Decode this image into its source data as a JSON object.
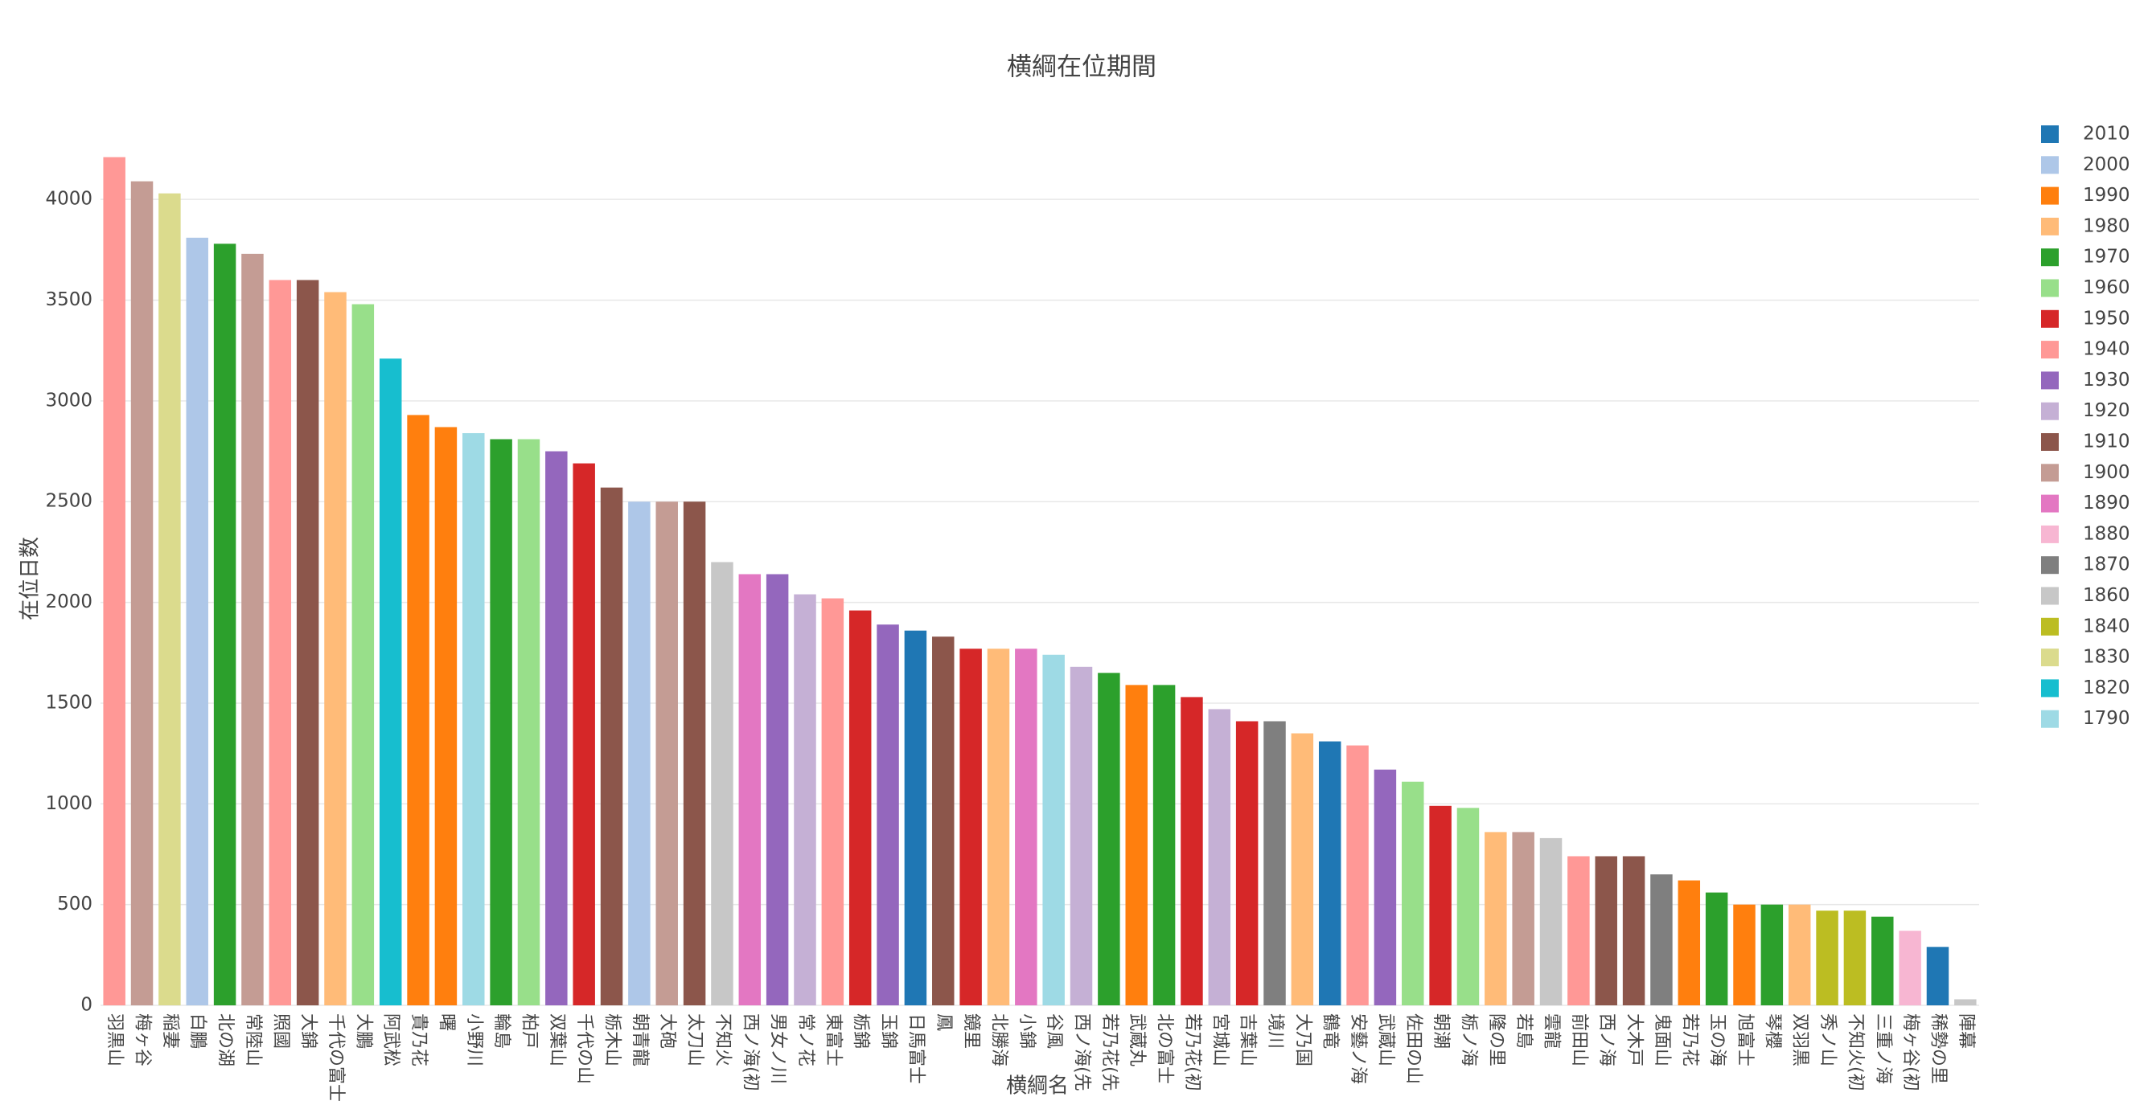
{
  "chart_data": {
    "type": "bar",
    "title": "横綱在位期間",
    "x_label": "横綱名",
    "y_label": "在位日数",
    "categories": [
      "羽黒山",
      "梅ヶ谷",
      "稲妻",
      "白鵬",
      "北の湖",
      "常陸山",
      "照國",
      "大錦",
      "千代の富士",
      "大鵬",
      "阿武松",
      "貴乃花",
      "曙",
      "小野川",
      "輪島",
      "柏戸",
      "双葉山",
      "千代の山",
      "栃木山",
      "朝青龍",
      "大砲",
      "太刀山",
      "不知火",
      "西ノ海(初",
      "男女ノ川",
      "常ノ花",
      "東富士",
      "栃錦",
      "玉錦",
      "日馬富士",
      "鳳",
      "鏡里",
      "北勝海",
      "小錦",
      "谷風",
      "西ノ海(先",
      "若乃花(先",
      "武蔵丸",
      "北の富士",
      "若乃花(初",
      "宮城山",
      "吉葉山",
      "境川",
      "大乃国",
      "鶴竜",
      "安藝ノ海",
      "武蔵山",
      "佐田の山",
      "朝潮",
      "栃ノ海",
      "隆の里",
      "若島",
      "雲龍",
      "前田山",
      "西ノ海",
      "大木戸",
      "鬼面山",
      "若乃花",
      "玉の海",
      "旭富士",
      "琴櫻",
      "双羽黒",
      "秀ノ山",
      "不知火(初",
      "三重ノ海",
      "梅ヶ谷(初",
      "稀勢の里",
      "陣幕"
    ],
    "values": [
      4210,
      4090,
      4030,
      3810,
      3780,
      3730,
      3600,
      3600,
      3540,
      3480,
      3210,
      2930,
      2870,
      2840,
      2810,
      2810,
      2750,
      2690,
      2570,
      2500,
      2500,
      2500,
      2200,
      2140,
      2140,
      2040,
      2020,
      1960,
      1890,
      1860,
      1830,
      1770,
      1770,
      1770,
      1740,
      1680,
      1650,
      1590,
      1590,
      1530,
      1470,
      1410,
      1410,
      1350,
      1310,
      1290,
      1170,
      1110,
      990,
      980,
      860,
      860,
      830,
      740,
      740,
      740,
      650,
      620,
      560,
      500,
      500,
      500,
      470,
      470,
      440,
      370,
      290,
      30
    ],
    "decades": [
      "1940",
      "1900",
      "1830",
      "2000",
      "1970",
      "1900",
      "1940",
      "1910",
      "1980",
      "1960",
      "1820",
      "1990",
      "1990",
      "1790",
      "1970",
      "1960",
      "1930",
      "1950",
      "1910",
      "2000",
      "1900",
      "1910",
      "1860",
      "1890",
      "1930",
      "1920",
      "1940",
      "1950",
      "1930",
      "2010",
      "1910",
      "1950",
      "1980",
      "1890",
      "1790",
      "1920",
      "1970",
      "1990",
      "1970",
      "1950",
      "1920",
      "1950",
      "1870",
      "1980",
      "2010",
      "1940",
      "1930",
      "1960",
      "1950",
      "1960",
      "1980",
      "1900",
      "1860",
      "1940",
      "1910",
      "1910",
      "1870",
      "1990",
      "1970",
      "1990",
      "1970",
      "1980",
      "1840",
      "1840",
      "1970",
      "1880",
      "2010",
      "1860"
    ],
    "series": [
      {
        "name": "2010",
        "color": "#1f77b4"
      },
      {
        "name": "2000",
        "color": "#aec7e8"
      },
      {
        "name": "1990",
        "color": "#ff7f0e"
      },
      {
        "name": "1980",
        "color": "#ffbb78"
      },
      {
        "name": "1970",
        "color": "#2ca02c"
      },
      {
        "name": "1960",
        "color": "#98df8a"
      },
      {
        "name": "1950",
        "color": "#d62728"
      },
      {
        "name": "1940",
        "color": "#ff9896"
      },
      {
        "name": "1930",
        "color": "#9467bd"
      },
      {
        "name": "1920",
        "color": "#c5b0d5"
      },
      {
        "name": "1910",
        "color": "#8c564b"
      },
      {
        "name": "1900",
        "color": "#c49c94"
      },
      {
        "name": "1890",
        "color": "#e377c2"
      },
      {
        "name": "1880",
        "color": "#f7b6d2"
      },
      {
        "name": "1870",
        "color": "#7f7f7f"
      },
      {
        "name": "1860",
        "color": "#c7c7c7"
      },
      {
        "name": "1840",
        "color": "#bcbd22"
      },
      {
        "name": "1830",
        "color": "#dbdb8d"
      },
      {
        "name": "1820",
        "color": "#17becf"
      },
      {
        "name": "1790",
        "color": "#9edae5"
      }
    ],
    "ylim": [
      0,
      4240
    ],
    "yticks": [
      0,
      500,
      1000,
      1500,
      2000,
      2500,
      3000,
      3500,
      4000
    ],
    "grid": true
  }
}
